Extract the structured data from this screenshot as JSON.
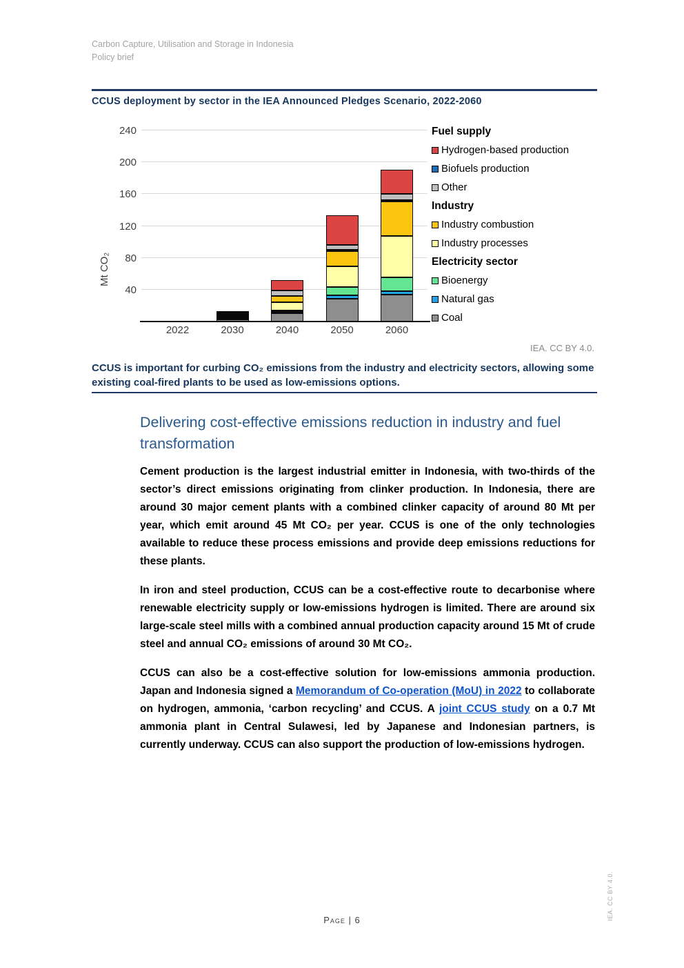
{
  "page": {
    "header_line1": "Carbon Capture, Utilisation and Storage in Indonesia",
    "header_line2": "Policy brief",
    "footer_page": "Page | 6",
    "side_credit": "IEA. CC BY 4.0."
  },
  "figure": {
    "title": "CCUS deployment by sector in the IEA Announced Pledges Scenario, 2022-2060",
    "credit": "IEA. CC BY 4.0.",
    "caption": "CCUS is important for curbing CO₂ emissions from the industry and electricity sectors, allowing some existing coal-fired plants to be used as low-emissions options."
  },
  "chart_data": {
    "type": "bar",
    "stacked": true,
    "title": "CCUS deployment by sector in the IEA Announced Pledges Scenario, 2022-2060",
    "xlabel": "",
    "ylabel": "Mt CO₂",
    "ylim": [
      0,
      240
    ],
    "yticks": [
      40,
      80,
      120,
      160,
      200,
      240
    ],
    "grid": true,
    "legend_position": "right",
    "categories": [
      "2022",
      "2030",
      "2040",
      "2050",
      "2060"
    ],
    "stack_order_bottom_to_top": [
      "coal",
      "natural_gas",
      "bioenergy",
      "industry_processes",
      "industry_combustion",
      "biofuels_production",
      "other",
      "hydrogen_production"
    ],
    "series": [
      {
        "key": "hydrogen_production",
        "name": "Hydrogen-based production",
        "color": "#dd4444",
        "values": [
          0,
          1,
          13,
          37,
          30
        ]
      },
      {
        "key": "biofuels_production",
        "name": "Biofuels production",
        "color": "#1e6cb5",
        "values": [
          0,
          0,
          0,
          1,
          2
        ]
      },
      {
        "key": "other",
        "name": "Other",
        "color": "#bfbfbf",
        "values": [
          0,
          1,
          7,
          6,
          8
        ]
      },
      {
        "key": "industry_combustion",
        "name": "Industry combustion",
        "color": "#fbc511",
        "values": [
          0,
          2,
          8,
          19,
          43
        ]
      },
      {
        "key": "industry_processes",
        "name": "Industry processes",
        "color": "#feffa6",
        "values": [
          0,
          2,
          10,
          26,
          52
        ]
      },
      {
        "key": "bioenergy",
        "name": "Bioenergy",
        "color": "#63e594",
        "values": [
          0,
          1,
          2,
          10,
          17
        ]
      },
      {
        "key": "natural_gas",
        "name": "Natural gas",
        "color": "#21a3e6",
        "values": [
          0,
          1,
          2,
          4,
          4
        ]
      },
      {
        "key": "coal",
        "name": "Coal",
        "color": "#8e8e8e",
        "values": [
          0,
          3,
          10,
          29,
          34
        ]
      }
    ]
  },
  "legend": {
    "groups": [
      {
        "title": "Fuel supply",
        "items": [
          {
            "key": "hydrogen_production",
            "label": "Hydrogen-based production"
          },
          {
            "key": "biofuels_production",
            "label": "Biofuels production"
          },
          {
            "key": "other",
            "label": "Other"
          }
        ]
      },
      {
        "title": "Industry",
        "items": [
          {
            "key": "industry_combustion",
            "label": "Industry combustion"
          },
          {
            "key": "industry_processes",
            "label": "Industry processes"
          }
        ]
      },
      {
        "title": "Electricity sector",
        "items": [
          {
            "key": "bioenergy",
            "label": "Bioenergy"
          },
          {
            "key": "natural_gas",
            "label": "Natural gas"
          },
          {
            "key": "coal",
            "label": "Coal"
          }
        ]
      }
    ]
  },
  "main": {
    "heading": "Delivering cost-effective emissions reduction in industry and fuel transformation",
    "paragraph1": "Cement production is the largest industrial emitter in Indonesia, with two-thirds of the sector’s direct emissions originating from clinker production. In Indonesia, there are around 30 major cement plants with a combined clinker capacity of around 80 Mt per year, which emit around 45 Mt CO₂ per year. CCUS is one of the only technologies available to reduce these process emissions and provide deep emissions reductions for these plants.",
    "paragraph2": "In iron and steel production, CCUS can be a cost-effective route to decarbonise where renewable electricity supply or low-emissions hydrogen is limited. There are around six large-scale steel mills with a combined annual production capacity around 15 Mt of crude steel and annual CO₂ emissions of around 30 Mt CO₂.",
    "paragraph3_parts": [
      {
        "text": "CCUS can also be a cost-effective solution for low-emissions ammonia production. Japan and Indonesia signed a ",
        "link": false
      },
      {
        "text": "Memorandum of Co-operation (MoU) in 2022",
        "link": true
      },
      {
        "text": " to collaborate on hydrogen, ammonia, ‘carbon recycling’ and CCUS. A ",
        "link": false
      },
      {
        "text": "joint CCUS study",
        "link": true
      },
      {
        "text": " on a 0.7 Mt ammonia plant in Central Sulawesi, led by Japanese and Indonesian partners, is currently underway. CCUS can also support the production of low-emissions hydrogen.",
        "link": false
      }
    ]
  },
  "colors": {
    "rule_navy": "#1f3864",
    "title_navy": "#17375e",
    "heading_blue": "#2a5a8c",
    "link_blue": "#1155cc"
  }
}
